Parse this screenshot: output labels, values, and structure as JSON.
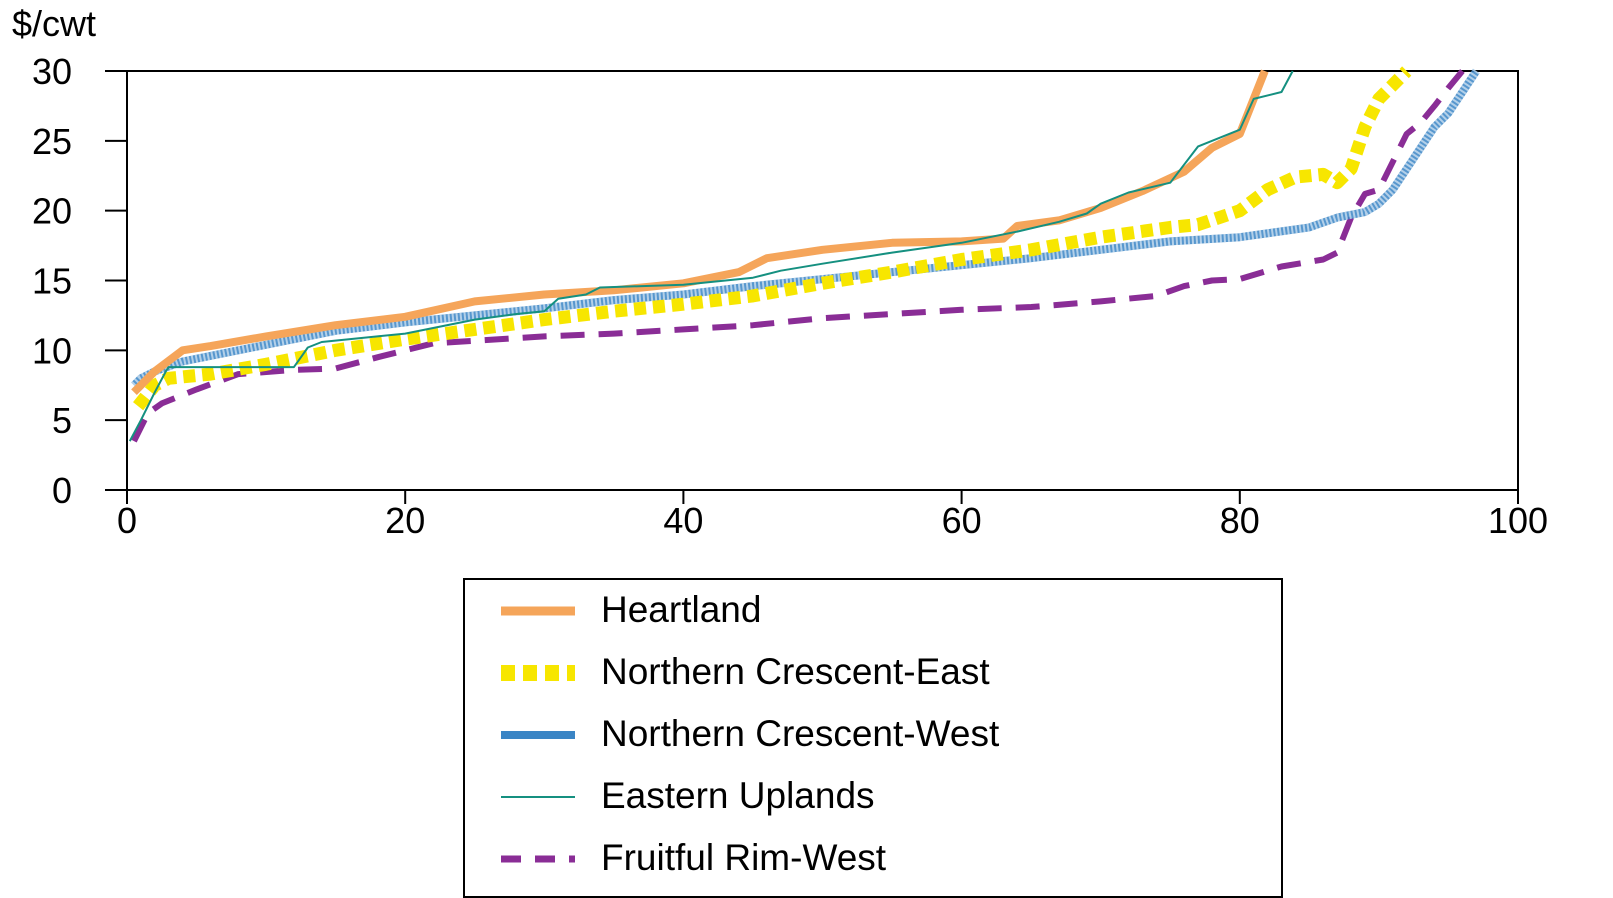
{
  "chart_data": {
    "type": "line",
    "ylabel": "$/cwt",
    "xlabel": "",
    "xlim": [
      0,
      100
    ],
    "ylim": [
      0,
      30
    ],
    "xticks": [
      "0",
      "20",
      "40",
      "60",
      "80",
      "100"
    ],
    "yticks": [
      "0",
      "5",
      "10",
      "15",
      "20",
      "25",
      "30"
    ],
    "legend_position": "below",
    "series": [
      {
        "name": "Heartland",
        "color": "#f5a55a",
        "style": "solid-thick",
        "x": [
          0.5,
          2,
          4,
          6,
          10,
          15,
          20,
          25,
          30,
          35,
          40,
          44,
          46,
          50,
          55,
          60,
          63,
          64,
          67,
          70,
          73,
          76,
          78,
          80,
          81,
          81.8
        ],
        "y": [
          7,
          8.5,
          10,
          10.3,
          11,
          11.8,
          12.4,
          13.5,
          14,
          14.3,
          14.8,
          15.6,
          16.6,
          17.2,
          17.7,
          17.8,
          18,
          18.9,
          19.3,
          20.2,
          21.4,
          22.8,
          24.5,
          25.5,
          28,
          30
        ]
      },
      {
        "name": "Northern Crescent-East",
        "color": "#f7e600",
        "style": "dotted-thick",
        "x": [
          0.8,
          2,
          3,
          6,
          10,
          15,
          20,
          25,
          30,
          35,
          40,
          45,
          50,
          55,
          60,
          65,
          70,
          75,
          77,
          80,
          82,
          84,
          86,
          87,
          88,
          89,
          90,
          91,
          92
        ],
        "y": [
          6,
          7.5,
          8,
          8.3,
          9,
          10,
          10.8,
          11.5,
          12.2,
          12.8,
          13.3,
          13.9,
          14.8,
          15.6,
          16.5,
          17.2,
          18.1,
          18.8,
          19,
          20,
          21.5,
          22.4,
          22.6,
          22,
          23,
          26,
          28,
          29,
          30
        ]
      },
      {
        "name": "Northern Crescent-West",
        "color": "#3a85c5",
        "style": "dotted-band",
        "x": [
          0.5,
          1,
          2,
          4,
          8,
          15,
          20,
          25,
          30,
          35,
          40,
          45,
          50,
          55,
          60,
          65,
          70,
          75,
          80,
          85,
          87,
          89,
          90,
          91,
          92,
          93,
          94,
          95,
          96,
          97
        ],
        "y": [
          7.5,
          8,
          8.5,
          9.2,
          10,
          11.4,
          12,
          12.5,
          13,
          13.6,
          14,
          14.6,
          15.1,
          15.6,
          16.1,
          16.6,
          17.2,
          17.8,
          18.1,
          18.8,
          19.5,
          19.9,
          20.5,
          21.5,
          23,
          24.5,
          26,
          27,
          28.5,
          30
        ]
      },
      {
        "name": "Eastern Uplands",
        "color": "#159080",
        "style": "solid-thin",
        "x": [
          0.2,
          1,
          2,
          2.8,
          3,
          6,
          12,
          12.5,
          13,
          14,
          18,
          20,
          25,
          28,
          30,
          31,
          33,
          34,
          40,
          45,
          47,
          50,
          55,
          60,
          64,
          67,
          69,
          70,
          72,
          75,
          77,
          80,
          81,
          83,
          83.8
        ],
        "y": [
          3.5,
          5,
          7,
          8.5,
          8.8,
          8.8,
          8.8,
          9.5,
          10.2,
          10.6,
          11,
          11.2,
          12.2,
          12.6,
          12.8,
          13.7,
          14,
          14.5,
          14.7,
          15.2,
          15.7,
          16.2,
          17,
          17.7,
          18.5,
          19.2,
          19.8,
          20.5,
          21.3,
          22,
          24.6,
          25.8,
          28,
          28.5,
          30
        ]
      },
      {
        "name": "Fruitful Rim-West",
        "color": "#8a2d96",
        "style": "dashed",
        "x": [
          0.5,
          1.5,
          2.5,
          5,
          8,
          12,
          15,
          18,
          22,
          30,
          35,
          40,
          45,
          50,
          55,
          60,
          65,
          70,
          74,
          76,
          78,
          80,
          83,
          86,
          87,
          88,
          89,
          90,
          91,
          92,
          93,
          94,
          95,
          96
        ],
        "y": [
          3.5,
          5.5,
          6.2,
          7.2,
          8.3,
          8.6,
          8.7,
          9.5,
          10.5,
          11,
          11.2,
          11.5,
          11.8,
          12.3,
          12.6,
          12.9,
          13.1,
          13.5,
          13.9,
          14.6,
          15,
          15.1,
          16,
          16.5,
          17,
          19.5,
          21.2,
          21.5,
          23.5,
          25.5,
          26.3,
          27.5,
          28.8,
          30
        ]
      }
    ]
  }
}
